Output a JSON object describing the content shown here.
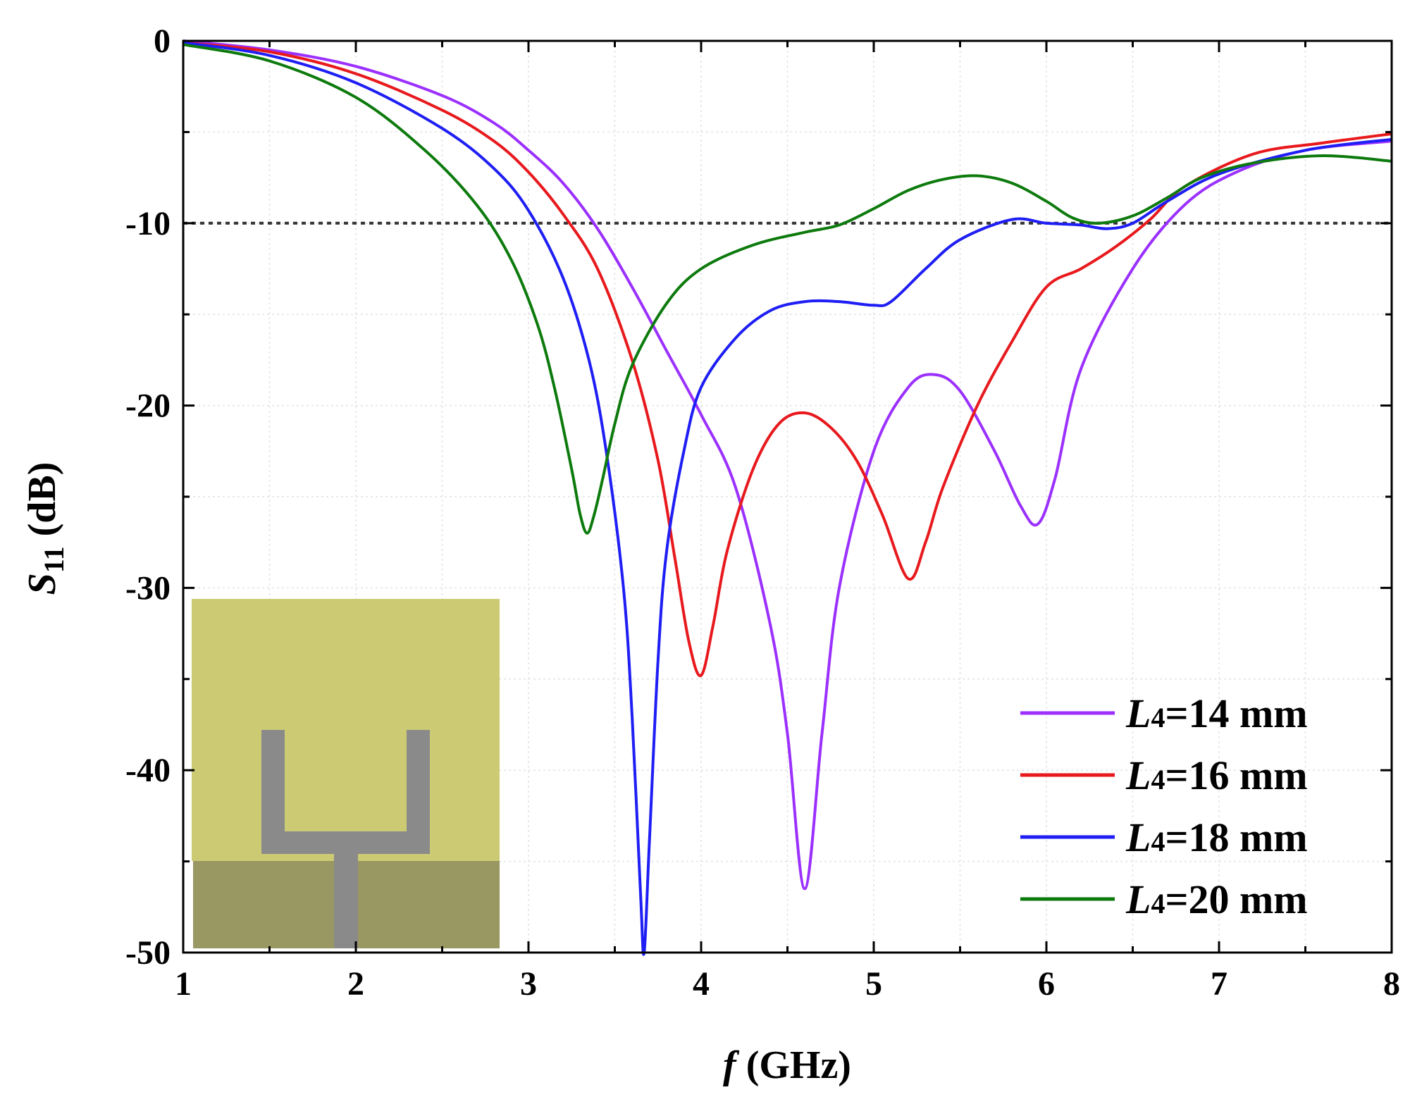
{
  "chart_data": {
    "type": "line",
    "xlabel_italic": "f",
    "xlabel_rest": " (GHz)",
    "ylabel_main": "S",
    "ylabel_sub": "11",
    "ylabel_rest": " (dB)",
    "xlim": [
      1,
      8
    ],
    "ylim": [
      -50,
      0
    ],
    "x_ticks": [
      1,
      2,
      3,
      4,
      5,
      6,
      7,
      8
    ],
    "y_ticks": [
      0,
      -10,
      -20,
      -30,
      -40,
      -50
    ],
    "x_tick_labels": [
      "1",
      "2",
      "3",
      "4",
      "5",
      "6",
      "7",
      "8"
    ],
    "y_tick_labels": [
      "0",
      "-10",
      "-20",
      "-30",
      "-40",
      "-50"
    ],
    "grid": true,
    "reference_line": {
      "y": -10,
      "style": "dotted",
      "color": "#333333"
    },
    "legend_position": "bottom-right",
    "series": [
      {
        "name": "L4=14 mm",
        "label_italic": "L",
        "label_sub": "4",
        "label_rest": "=14 mm",
        "color": "#9b30ff",
        "x": [
          1.0,
          1.5,
          2.0,
          2.5,
          2.8,
          3.0,
          3.2,
          3.4,
          3.6,
          3.8,
          4.0,
          4.2,
          4.4,
          4.5,
          4.6,
          4.7,
          4.8,
          5.0,
          5.2,
          5.35,
          5.5,
          5.7,
          5.85,
          5.95,
          6.05,
          6.2,
          6.5,
          6.8,
          7.1,
          7.5,
          8.0
        ],
        "y": [
          0.0,
          -0.5,
          -1.4,
          -3.0,
          -4.5,
          -6.0,
          -7.8,
          -10.3,
          -13.5,
          -17.0,
          -20.5,
          -24.5,
          -32.0,
          -38.0,
          -46.5,
          -38.0,
          -30.0,
          -22.5,
          -19.0,
          -18.3,
          -19.2,
          -22.5,
          -25.5,
          -26.5,
          -24.0,
          -18.0,
          -12.5,
          -9.0,
          -7.2,
          -6.0,
          -5.5
        ]
      },
      {
        "name": "L4=16 mm",
        "label_italic": "L",
        "label_sub": "4",
        "label_rest": "=16 mm",
        "color": "#e8191d",
        "x": [
          1.0,
          1.5,
          2.0,
          2.5,
          2.8,
          3.0,
          3.2,
          3.4,
          3.6,
          3.75,
          3.85,
          3.93,
          4.0,
          4.07,
          4.15,
          4.3,
          4.45,
          4.6,
          4.75,
          4.9,
          5.05,
          5.2,
          5.3,
          5.4,
          5.6,
          5.8,
          6.0,
          6.2,
          6.4,
          6.6,
          6.8,
          7.2,
          7.6,
          8.0
        ],
        "y": [
          -0.1,
          -0.6,
          -1.8,
          -3.8,
          -5.5,
          -7.2,
          -9.5,
          -12.5,
          -17.5,
          -23.0,
          -28.5,
          -33.0,
          -34.8,
          -32.0,
          -28.0,
          -23.5,
          -21.0,
          -20.4,
          -21.2,
          -23.0,
          -26.0,
          -29.5,
          -27.5,
          -24.5,
          -20.0,
          -16.5,
          -13.5,
          -12.5,
          -11.3,
          -9.8,
          -8.0,
          -6.2,
          -5.6,
          -5.1
        ]
      },
      {
        "name": "L4=18 mm",
        "label_italic": "L",
        "label_sub": "4",
        "label_rest": "=18 mm",
        "color": "#1e1ef5",
        "x": [
          1.0,
          1.5,
          2.0,
          2.5,
          2.8,
          3.0,
          3.2,
          3.35,
          3.45,
          3.55,
          3.6,
          3.65,
          3.67,
          3.7,
          3.75,
          3.8,
          3.9,
          4.0,
          4.2,
          4.4,
          4.6,
          4.8,
          5.0,
          5.1,
          5.3,
          5.5,
          5.8,
          6.0,
          6.2,
          6.35,
          6.5,
          6.7,
          7.0,
          7.5,
          8.0
        ],
        "y": [
          -0.1,
          -0.8,
          -2.3,
          -4.8,
          -7.0,
          -9.3,
          -13.0,
          -17.5,
          -22.5,
          -30.0,
          -37.0,
          -47.0,
          -50.0,
          -44.0,
          -34.0,
          -28.0,
          -22.5,
          -19.0,
          -16.3,
          -14.8,
          -14.3,
          -14.3,
          -14.5,
          -14.3,
          -12.5,
          -10.9,
          -9.8,
          -10.0,
          -10.1,
          -10.3,
          -10.0,
          -8.8,
          -7.3,
          -6.0,
          -5.4
        ]
      },
      {
        "name": "L4=20 mm",
        "label_italic": "L",
        "label_sub": "4",
        "label_rest": "=20 mm",
        "color": "#0d7a0d",
        "x": [
          1.0,
          1.5,
          2.0,
          2.4,
          2.7,
          2.9,
          3.05,
          3.15,
          3.25,
          3.3,
          3.34,
          3.38,
          3.43,
          3.5,
          3.6,
          3.8,
          4.0,
          4.3,
          4.6,
          4.8,
          5.0,
          5.2,
          5.4,
          5.6,
          5.8,
          6.0,
          6.15,
          6.3,
          6.5,
          6.7,
          6.9,
          7.2,
          7.6,
          8.0
        ],
        "y": [
          -0.2,
          -1.1,
          -3.1,
          -6.0,
          -9.0,
          -12.0,
          -15.5,
          -19.0,
          -23.5,
          -26.0,
          -27.0,
          -26.0,
          -24.0,
          -21.0,
          -17.8,
          -14.4,
          -12.5,
          -11.2,
          -10.5,
          -10.1,
          -9.2,
          -8.2,
          -7.6,
          -7.4,
          -7.8,
          -8.8,
          -9.7,
          -10.0,
          -9.6,
          -8.6,
          -7.5,
          -6.7,
          -6.3,
          -6.6
        ]
      }
    ],
    "inset": {
      "description_icon": "antenna-layout-icon"
    }
  }
}
